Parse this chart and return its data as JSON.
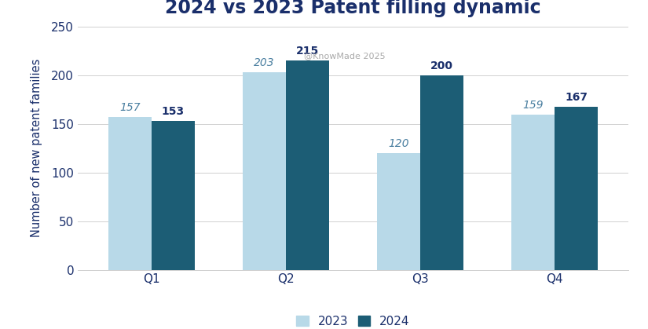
{
  "title": "2024 vs 2023 Patent filling dynamic",
  "categories": [
    "Q1",
    "Q2",
    "Q3",
    "Q4"
  ],
  "values_2023": [
    157,
    203,
    120,
    159
  ],
  "values_2024": [
    153,
    215,
    200,
    167
  ],
  "color_2023": "#b8d9e8",
  "color_2024": "#1c5d75",
  "ylabel": "Number of new patent families",
  "ylim": [
    0,
    250
  ],
  "yticks": [
    0,
    50,
    100,
    150,
    200,
    250
  ],
  "legend_labels": [
    "2023",
    "2024"
  ],
  "watermark": "@KnowMade 2025",
  "bar_width": 0.32,
  "title_color": "#1a2f6b",
  "label_color_2023": "#4a7fa0",
  "label_color_2024": "#1a2f6b",
  "axis_label_color": "#1a2f6b",
  "tick_color": "#1a2f6b",
  "background_color": "#ffffff",
  "title_fontsize": 17,
  "axis_label_fontsize": 10.5,
  "tick_fontsize": 11,
  "bar_label_fontsize": 10,
  "watermark_color": "#aaaaaa"
}
